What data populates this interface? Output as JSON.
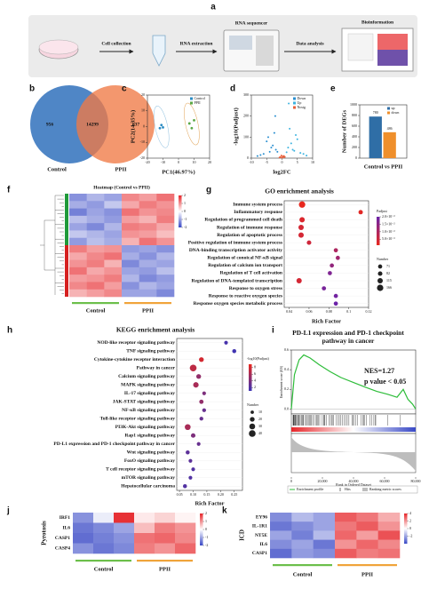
{
  "workflow": {
    "label": "a",
    "steps": [
      "Cell collection",
      "RNA extraction",
      "RNA sequencer",
      "Data analysis",
      "Bioinformation"
    ]
  },
  "venn": {
    "label": "b",
    "left_only": 956,
    "overlap": 14299,
    "right_only": 637,
    "left_name": "Control",
    "right_name": "PPII",
    "left_color": "#4f86c6",
    "right_color": "#f07a45"
  },
  "chart_data": [
    {
      "panel": "c",
      "type": "scatter",
      "xlabel": "PC1(46.97%)",
      "ylabel": "PC2(14.35%)",
      "xlim": [
        -20,
        20
      ],
      "ylim": [
        -20,
        20
      ],
      "xticks": [
        -20,
        -10,
        0,
        10,
        20
      ],
      "yticks": [
        -20,
        -10,
        0,
        10,
        20
      ],
      "legend": "upper right",
      "series": [
        {
          "name": "Control",
          "color": "#2b8cc4",
          "x": [
            -12,
            -11,
            -10
          ],
          "values": [
            -1,
            1,
            -0.5
          ]
        },
        {
          "name": "PPII",
          "color": "#5aa845",
          "x": [
            7,
            8.5,
            10
          ],
          "values": [
            2,
            -1,
            4
          ]
        }
      ]
    },
    {
      "panel": "d",
      "type": "scatter",
      "xlabel": "log2FC",
      "ylabel": "-log10(Padjust)",
      "xlim": [
        -10,
        10
      ],
      "ylim": [
        0,
        300
      ],
      "xticks": [
        -10,
        -5,
        0,
        5,
        10
      ],
      "yticks": [
        0,
        100,
        200,
        300
      ],
      "legend": "upper right",
      "series": [
        {
          "name": "Down",
          "color": "#2a8fd0",
          "x": [
            -2,
            -3,
            -4,
            -5,
            -6,
            -2.5,
            -3.5,
            -7,
            -1.5,
            -4.5,
            -8,
            -2.2
          ],
          "values": [
            40,
            60,
            30,
            80,
            20,
            120,
            50,
            15,
            30,
            100,
            10,
            200
          ]
        },
        {
          "name": "Up",
          "color": "#3cb3e0",
          "x": [
            2,
            3,
            4,
            5,
            6,
            2.5,
            3.5,
            7,
            1.5,
            4.5,
            8,
            2.2
          ],
          "values": [
            50,
            70,
            35,
            90,
            25,
            140,
            40,
            20,
            28,
            110,
            12,
            260
          ]
        },
        {
          "name": "Nosig",
          "color": "#e8603b",
          "x": [
            -0.5,
            0.3,
            -0.8,
            0.6,
            0,
            0.9,
            -0.2,
            0.4
          ],
          "values": [
            5,
            8,
            3,
            10,
            2,
            6,
            12,
            4
          ]
        }
      ]
    },
    {
      "panel": "e",
      "type": "bar",
      "ylabel": "Number of DEGs",
      "categories": [
        "Control vs PPII"
      ],
      "ylim": [
        0,
        1000
      ],
      "yticks": [
        0,
        200,
        400,
        600,
        800,
        1000
      ],
      "legend": "upper right",
      "series": [
        {
          "name": "up",
          "color": "#2f6ea6",
          "values": [
            780
          ]
        },
        {
          "name": "down",
          "color": "#ef8f2b",
          "values": [
            486
          ]
        }
      ]
    },
    {
      "panel": "f",
      "type": "heatmap",
      "title": "Heatmap (Control vs PPII)",
      "groups": [
        "Control",
        "PPII"
      ],
      "group_colors": [
        "#6cbf4b",
        "#f0a43a"
      ],
      "clim": [
        -2,
        2
      ],
      "cmap": [
        "#3949c6",
        "#ffffff",
        "#e6262a"
      ],
      "cbar_ticks": [
        2,
        1,
        0,
        -1,
        -2
      ],
      "values": [
        [
          -1.2,
          -0.8,
          -1.0,
          1.1,
          0.9,
          1.3
        ],
        [
          -0.9,
          -1.1,
          -0.6,
          0.8,
          1.2,
          1.0
        ],
        [
          -1.4,
          -1.0,
          -1.2,
          1.3,
          1.0,
          1.1
        ],
        [
          -0.7,
          -0.9,
          -1.1,
          0.9,
          0.7,
          1.2
        ],
        [
          -1.0,
          -1.3,
          -0.8,
          1.2,
          1.1,
          0.8
        ],
        [
          -0.6,
          -0.8,
          -1.0,
          1.0,
          0.9,
          0.6
        ],
        [
          -1.1,
          -0.7,
          -0.9,
          0.7,
          1.3,
          1.0
        ],
        [
          1.2,
          0.9,
          1.0,
          -1.1,
          -1.0,
          -1.2
        ],
        [
          0.8,
          1.1,
          1.3,
          -0.9,
          -1.2,
          -0.8
        ],
        [
          1.0,
          1.2,
          0.7,
          -1.3,
          -0.9,
          -1.0
        ],
        [
          1.3,
          0.8,
          1.0,
          -1.0,
          -1.1,
          -0.7
        ],
        [
          0.9,
          1.0,
          1.2,
          -0.8,
          -1.3,
          -1.1
        ],
        [
          1.1,
          1.3,
          0.9,
          -1.2,
          -0.8,
          -1.0
        ],
        [
          0.7,
          0.9,
          1.1,
          -1.0,
          -1.0,
          -1.3
        ]
      ]
    },
    {
      "panel": "g",
      "type": "dot",
      "title": "GO enrichment analysis",
      "xlabel": "Rich Factor",
      "xlim": [
        0.035,
        0.12
      ],
      "xticks": [
        0.04,
        0.06,
        0.08,
        0.1,
        0.12
      ],
      "categories": [
        "Immune system process",
        "Inflammatory response",
        "Regulation of programmed cell death",
        "Regulation of immune response",
        "Regulation of apoptotic process",
        "Positive regulation of immune system process",
        "DNA-binding transcription activator activity",
        "Regulation of conoical NF-κB signal",
        "Regulation of calcium ion transport",
        "Regulation of T cell activation",
        "Regulation of DNA-templated transcription",
        "Response to oxygen stress",
        "Response to reactive oxygen species",
        "Response oxygen species metabolic process"
      ],
      "values": [
        0.053,
        0.112,
        0.053,
        0.052,
        0.052,
        0.06,
        0.087,
        0.089,
        0.083,
        0.081,
        0.05,
        0.075,
        0.087,
        0.087
      ],
      "sizes": [
        166,
        77,
        115,
        115,
        115,
        82,
        71,
        71,
        71,
        71,
        115,
        71,
        71,
        71
      ],
      "color_values": [
        0.001,
        0.002,
        0.003,
        0.004,
        0.004,
        0.005,
        0.01,
        0.012,
        0.014,
        0.017,
        0.004,
        0.018,
        0.019,
        0.02
      ],
      "color_title": "Padjust",
      "clim": [
        0.001,
        0.02
      ],
      "cmap": [
        "#e8281e",
        "#6b23a8"
      ],
      "cbar_ticks": [
        {
          "value": 0.02,
          "label": "2.0×10⁻²"
        },
        {
          "value": 0.015,
          "label": "1.5×10⁻²"
        },
        {
          "value": 0.01,
          "label": "1.0×10⁻²"
        },
        {
          "value": 0.005,
          "label": "5.0×10⁻³"
        }
      ],
      "size_title": "Number",
      "size_ticks": [
        71,
        82,
        115,
        166
      ]
    },
    {
      "panel": "h",
      "type": "dot",
      "title": "KEGG enrichment analysis",
      "xlabel": "Rich Factor",
      "xlim": [
        0.04,
        0.28
      ],
      "xticks": [
        0.05,
        {
          "value": 0.1,
          "label": "0.10"
        },
        0.15,
        {
          "value": 0.2,
          "label": "0.20"
        },
        0.25
      ],
      "categories": [
        "NOD-like receptor signaling pathway",
        "TNF signaling pathway",
        "Cytokine-cytokine receptor interaction",
        "Pathway in cancer",
        "Calcium signaling pathway",
        "MAPK signaling pathway",
        "IL-17 signaling pathway",
        "JAK-STAT signaling pathway",
        "NF-κB signaling pathway",
        "Toll-like receptor signaling pathway",
        "PI3K-Akt signaling pathway",
        "Rap1 signaling pathway",
        "PD-L1 expression and PD-1 checkpoint pathway in cancer",
        "Wnt signaling pathway",
        "FoxO signaling pathway",
        "T cell receptor signaling pathway",
        "mTOR signaling pathway",
        "Hepatocellular carcinoma"
      ],
      "values": [
        0.22,
        0.25,
        0.13,
        0.1,
        0.12,
        0.11,
        0.14,
        0.13,
        0.14,
        0.13,
        0.08,
        0.1,
        0.12,
        0.08,
        0.09,
        0.1,
        0.09,
        0.07
      ],
      "sizes": [
        12,
        14,
        20,
        40,
        20,
        26,
        12,
        16,
        13,
        13,
        30,
        18,
        12,
        14,
        12,
        12,
        12,
        14
      ],
      "color_values": [
        1.5,
        1.2,
        8,
        7,
        5,
        6,
        4,
        5,
        3,
        3,
        6,
        4,
        3,
        2.5,
        2.5,
        2,
        2,
        2
      ],
      "color_title": "-log10(Padjust)",
      "clim": [
        1,
        9
      ],
      "cmap": [
        "#3c33b5",
        "#e8281e"
      ],
      "cbar_ticks": [
        8,
        6,
        4,
        2
      ],
      "size_title": "Number",
      "size_ticks": [
        10,
        20,
        30,
        40
      ]
    },
    {
      "panel": "i",
      "type": "line",
      "title": "PD-L1 expression and PD-1 checkpoint pathway in cancer",
      "annotations": [
        "NES=1.27",
        "p value < 0.05"
      ],
      "ylabel": "Enrichment score (ES)",
      "xlabel": "Rank in Ordered Dataset",
      "color": "#2ebd3a",
      "x": [
        0,
        2000,
        5000,
        8000,
        12000,
        18000,
        25000,
        32000,
        40000,
        48000,
        55000,
        62000,
        68000,
        72000,
        75000,
        78000,
        80000
      ],
      "values": [
        0,
        0.35,
        0.5,
        0.55,
        0.52,
        0.45,
        0.38,
        0.32,
        0.27,
        0.22,
        0.18,
        0.15,
        0.12,
        0.2,
        0.1,
        0.05,
        0
      ],
      "xlim": [
        0,
        80000
      ],
      "ylim": [
        -0.05,
        0.6
      ],
      "xticks": [
        0,
        {
          "value": 20000,
          "label": "20,000"
        },
        {
          "value": 40000,
          "label": "40,000"
        },
        {
          "value": 60000,
          "label": "60,000"
        },
        {
          "value": 80000,
          "label": "80,000"
        }
      ],
      "yticks": [
        {
          "value": 0,
          "label": "0.0"
        },
        0.2,
        0.4,
        0.6
      ],
      "legend_entries": [
        "Enrichment profile",
        "Hits",
        "Ranking metric scores"
      ]
    },
    {
      "panel": "j",
      "type": "heatmap",
      "ylabel": "Pyrotosis",
      "rows": [
        "IRF1",
        "IL6",
        "CASP1",
        "CASP4"
      ],
      "groups": [
        "Control",
        "PPII"
      ],
      "group_colors": [
        "#6cbf4b",
        "#f0a43a"
      ],
      "clim": [
        -2,
        2
      ],
      "cmap": [
        "#3949c6",
        "#ffffff",
        "#e6262a"
      ],
      "cbar_ticks": [
        2,
        1,
        0,
        -1,
        -2
      ],
      "values": [
        [
          -1.2,
          -0.2,
          1.9,
          0.2,
          0.4,
          0.1
        ],
        [
          -1.5,
          -1.3,
          -1.0,
          0.6,
          1.2,
          1.0
        ],
        [
          -1.6,
          -1.4,
          -1.2,
          1.3,
          1.4,
          1.1
        ],
        [
          -1.2,
          -1.5,
          -1.3,
          1.2,
          1.0,
          1.4
        ]
      ]
    },
    {
      "panel": "k",
      "type": "heatmap",
      "ylabel": "ICD",
      "rows": [
        "EY96",
        "IL-1R1",
        "NT5E",
        "IL6",
        "CASP1"
      ],
      "groups": [
        "Control",
        "PPII"
      ],
      "group_colors": [
        "#6cbf4b",
        "#f0a43a"
      ],
      "clim": [
        -4,
        4
      ],
      "cmap": [
        "#3949c6",
        "#ffffff",
        "#e6262a"
      ],
      "cbar_ticks": [
        4,
        2,
        0,
        -2
      ],
      "values": [
        [
          -2.5,
          -1.5,
          -2.0,
          3.0,
          2.5,
          1.5
        ],
        [
          -3.0,
          -2.5,
          -2.0,
          2.5,
          3.0,
          2.0
        ],
        [
          -2.0,
          -2.8,
          -1.5,
          2.8,
          1.8,
          3.2
        ],
        [
          -2.5,
          -2.0,
          -3.0,
          2.0,
          2.8,
          2.2
        ],
        [
          -3.2,
          -2.2,
          -2.5,
          3.0,
          2.4,
          2.6
        ]
      ]
    }
  ]
}
